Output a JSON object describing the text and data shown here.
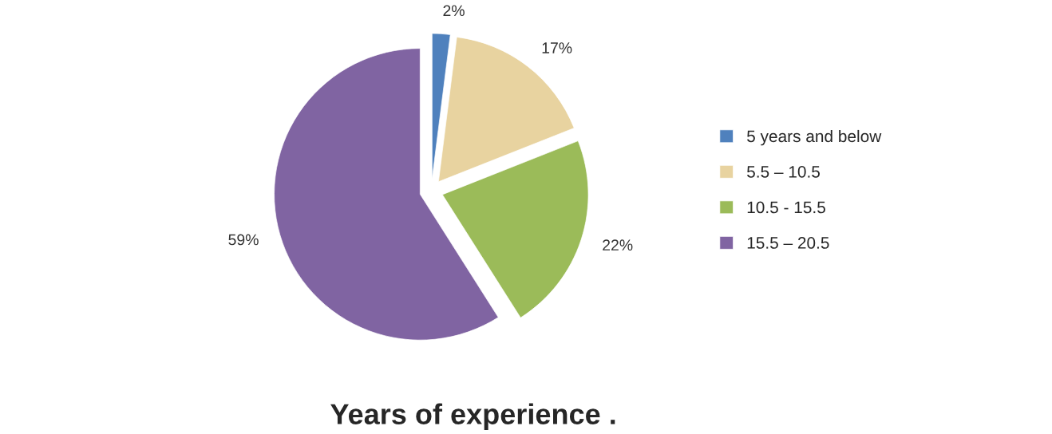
{
  "chart_data": {
    "type": "pie",
    "title": "Years of experience .",
    "categories": [
      "5 years and below",
      "5.5 – 10.5",
      "10.5 - 15.5",
      "15.5 – 20.5"
    ],
    "values": [
      2,
      17,
      22,
      59
    ],
    "colors": [
      "#4f81bd",
      "#e8d3a0",
      "#9bbb59",
      "#8064a2"
    ],
    "value_labels": [
      "2%",
      "17%",
      "22%",
      "59%"
    ],
    "legend": "right"
  }
}
